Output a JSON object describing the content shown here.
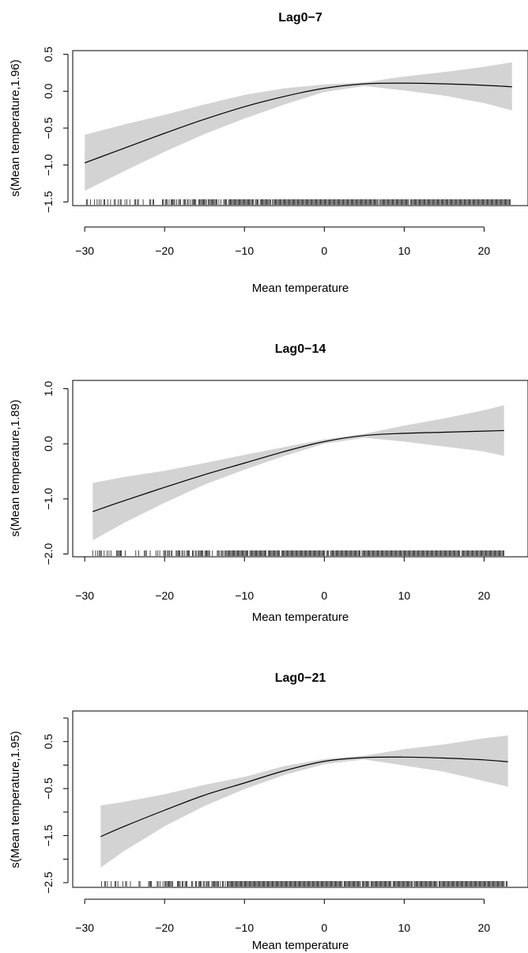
{
  "chart_data": [
    {
      "type": "line",
      "title": "Lag0−7",
      "xlabel": "Mean temperature",
      "ylabel": "s(Mean temperature,1.96)",
      "xlim": [
        -31.5,
        25.5
      ],
      "ylim": [
        -1.55,
        0.55
      ],
      "xticks": [
        -30,
        -20,
        -10,
        0,
        10,
        20
      ],
      "xtick_labels": [
        "−30",
        "−20",
        "−10",
        "0",
        "10",
        "20"
      ],
      "yticks": [
        -1.5,
        -1.0,
        -0.5,
        0.0,
        0.5
      ],
      "ytick_labels": [
        "−1.5",
        "−1.0",
        "−0.5",
        "0.0",
        "0.5"
      ],
      "series": [
        {
          "x": [
            -30,
            -25,
            -20,
            -15,
            -10,
            -5,
            0,
            5,
            10,
            15,
            20,
            23.5
          ],
          "fit": [
            -0.97,
            -0.77,
            -0.57,
            -0.38,
            -0.21,
            -0.07,
            0.04,
            0.1,
            0.11,
            0.1,
            0.08,
            0.06
          ],
          "lower": [
            -1.35,
            -1.08,
            -0.82,
            -0.58,
            -0.37,
            -0.18,
            -0.01,
            0.07,
            0.01,
            -0.06,
            -0.16,
            -0.26
          ],
          "upper": [
            -0.59,
            -0.45,
            -0.32,
            -0.18,
            -0.05,
            0.04,
            0.09,
            0.12,
            0.2,
            0.26,
            0.33,
            0.39
          ]
        }
      ],
      "grid": false
    },
    {
      "type": "line",
      "title": "Lag0−14",
      "xlabel": "Mean temperature",
      "ylabel": "s(Mean temperature,1.89)",
      "xlim": [
        -31.5,
        25.5
      ],
      "ylim": [
        -2.05,
        1.15
      ],
      "xticks": [
        -30,
        -20,
        -10,
        0,
        10,
        20
      ],
      "xtick_labels": [
        "−30",
        "−20",
        "−10",
        "0",
        "10",
        "20"
      ],
      "yticks": [
        -2.0,
        -1.0,
        0.0,
        1.0
      ],
      "ytick_labels": [
        "−2.0",
        "−1.0",
        "0.0",
        "1.0"
      ],
      "series": [
        {
          "x": [
            -29,
            -25,
            -20,
            -15,
            -10,
            -5,
            0,
            5,
            10,
            15,
            20,
            22.5
          ],
          "fit": [
            -1.23,
            -1.03,
            -0.79,
            -0.56,
            -0.35,
            -0.14,
            0.04,
            0.15,
            0.19,
            0.21,
            0.23,
            0.24
          ],
          "lower": [
            -1.75,
            -1.43,
            -1.07,
            -0.74,
            -0.47,
            -0.22,
            0.0,
            0.11,
            0.04,
            -0.05,
            -0.14,
            -0.22
          ],
          "upper": [
            -0.71,
            -0.6,
            -0.49,
            -0.35,
            -0.2,
            -0.06,
            0.08,
            0.18,
            0.33,
            0.46,
            0.61,
            0.7
          ]
        }
      ],
      "grid": false
    },
    {
      "type": "line",
      "title": "Lag0−21",
      "xlabel": "Mean temperature",
      "ylabel": "s(Mean temperature,1.95)",
      "xlim": [
        -31.5,
        25.5
      ],
      "ylim": [
        -2.6,
        1.15
      ],
      "xticks": [
        -30,
        -20,
        -10,
        0,
        10,
        20
      ],
      "xtick_labels": [
        "−30",
        "−20",
        "−10",
        "0",
        "10",
        "20"
      ],
      "yticks": [
        -2.5,
        -2.0,
        -1.5,
        -1.0,
        -0.5,
        0.0,
        0.5,
        1.0
      ],
      "ytick_labels": [
        "−2.5",
        "",
        "−1.5",
        "",
        "−0.5",
        "",
        "0.5",
        ""
      ],
      "series": [
        {
          "x": [
            -28,
            -25,
            -20,
            -15,
            -10,
            -5,
            0,
            5,
            10,
            15,
            20,
            23
          ],
          "fit": [
            -1.52,
            -1.3,
            -0.96,
            -0.64,
            -0.38,
            -0.12,
            0.08,
            0.16,
            0.17,
            0.15,
            0.11,
            0.07
          ],
          "lower": [
            -2.18,
            -1.82,
            -1.3,
            -0.87,
            -0.51,
            -0.21,
            0.02,
            0.12,
            -0.01,
            -0.14,
            -0.34,
            -0.46
          ],
          "upper": [
            -0.86,
            -0.78,
            -0.62,
            -0.42,
            -0.25,
            -0.02,
            0.13,
            0.2,
            0.34,
            0.44,
            0.57,
            0.63
          ]
        }
      ],
      "grid": false
    }
  ]
}
